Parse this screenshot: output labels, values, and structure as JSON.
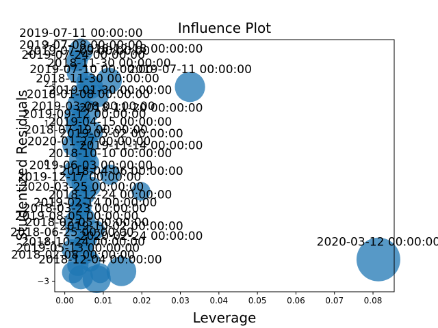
{
  "chart_data": {
    "type": "scatter",
    "title": "Influence Plot",
    "xlabel": "Leverage",
    "ylabel": "Studentized Residuals",
    "xlim": [
      -0.0026,
      0.0855
    ],
    "ylim": [
      -3.27,
      3.13
    ],
    "xticks": [
      0.0,
      0.01,
      0.02,
      0.03,
      0.04,
      0.05,
      0.06,
      0.07,
      0.08
    ],
    "xtick_labels": [
      "0.00",
      "0.01",
      "0.02",
      "0.03",
      "0.04",
      "0.05",
      "0.06",
      "0.07",
      "0.08"
    ],
    "yticks": [
      -3,
      -2,
      -1,
      0,
      1,
      2,
      3
    ],
    "ytick_labels": [
      "−3",
      "−2",
      "−1",
      "0",
      "1",
      "2",
      "3"
    ],
    "grid": false,
    "marker_color": "#1f77b4",
    "points": [
      {
        "x": 0.0814,
        "y": -2.45,
        "size": 1.0
      },
      {
        "x": 0.0325,
        "y": 1.93,
        "size": 0.42
      },
      {
        "x": 0.0147,
        "y": -2.75,
        "size": 0.4
      },
      {
        "x": 0.0083,
        "y": -2.95,
        "size": 0.35
      },
      {
        "x": 0.0115,
        "y": 2.09,
        "size": 0.28
      },
      {
        "x": 0.0042,
        "y": 2.85,
        "size": 0.24
      },
      {
        "x": 0.0069,
        "y": 1.93,
        "size": 0.22
      },
      {
        "x": 0.0042,
        "y": -2.9,
        "size": 0.24
      },
      {
        "x": 0.0085,
        "y": 1.7,
        "size": 0.2
      },
      {
        "x": 0.0022,
        "y": 0.45,
        "size": 0.18
      },
      {
        "x": 0.0031,
        "y": -1.8,
        "size": 0.2
      },
      {
        "x": 0.0021,
        "y": -2.78,
        "size": 0.18
      },
      {
        "x": 0.0061,
        "y": 1.3,
        "size": 0.2
      },
      {
        "x": 0.0048,
        "y": -2.3,
        "size": 0.2
      },
      {
        "x": 0.0055,
        "y": 0.2,
        "size": 0.17
      },
      {
        "x": 0.0038,
        "y": -1.2,
        "size": 0.18
      },
      {
        "x": 0.0118,
        "y": -0.3,
        "size": 0.15
      },
      {
        "x": 0.0198,
        "y": -0.72,
        "size": 0.12
      },
      {
        "x": 0.0029,
        "y": 0.9,
        "size": 0.16
      },
      {
        "x": 0.0035,
        "y": 1.5,
        "size": 0.18
      },
      {
        "x": 0.0045,
        "y": -0.5,
        "size": 0.17
      },
      {
        "x": 0.0051,
        "y": 0.6,
        "size": 0.16
      },
      {
        "x": 0.0026,
        "y": -1.5,
        "size": 0.18
      },
      {
        "x": 0.0033,
        "y": 2.3,
        "size": 0.18
      },
      {
        "x": 0.0058,
        "y": -1.9,
        "size": 0.16
      },
      {
        "x": 0.0063,
        "y": 0.0,
        "size": 0.15
      },
      {
        "x": 0.0019,
        "y": -2.2,
        "size": 0.16
      },
      {
        "x": 0.004,
        "y": 1.1,
        "size": 0.16
      },
      {
        "x": 0.0036,
        "y": -0.9,
        "size": 0.17
      },
      {
        "x": 0.0047,
        "y": 0.35,
        "size": 0.17
      },
      {
        "x": 0.0052,
        "y": -1.4,
        "size": 0.16
      },
      {
        "x": 0.0068,
        "y": -0.6,
        "size": 0.14
      },
      {
        "x": 0.0074,
        "y": 0.8,
        "size": 0.14
      },
      {
        "x": 0.0034,
        "y": -2.6,
        "size": 0.17
      },
      {
        "x": 0.0057,
        "y": 2.05,
        "size": 0.16
      },
      {
        "x": 0.0024,
        "y": -0.2,
        "size": 0.17
      },
      {
        "x": 0.0039,
        "y": 0.1,
        "size": 0.17
      },
      {
        "x": 0.0066,
        "y": -2.5,
        "size": 0.15
      },
      {
        "x": 0.0044,
        "y": 1.75,
        "size": 0.16
      },
      {
        "x": 0.0031,
        "y": -0.4,
        "size": 0.17
      },
      {
        "x": 0.0079,
        "y": -1.7,
        "size": 0.13
      },
      {
        "x": 0.0049,
        "y": -2.05,
        "size": 0.16
      },
      {
        "x": 0.0027,
        "y": 1.2,
        "size": 0.17
      },
      {
        "x": 0.0055,
        "y": -0.1,
        "size": 0.15
      },
      {
        "x": 0.0037,
        "y": 0.7,
        "size": 0.17
      },
      {
        "x": 0.0043,
        "y": -1.1,
        "size": 0.16
      },
      {
        "x": 0.0062,
        "y": 0.5,
        "size": 0.14
      },
      {
        "x": 0.0092,
        "y": -2.8,
        "size": 0.14
      },
      {
        "x": 0.0032,
        "y": 2.6,
        "size": 0.17
      },
      {
        "x": 0.0053,
        "y": -0.8,
        "size": 0.15
      }
    ],
    "annotations": [
      {
        "x": 0.0814,
        "y": -2.45,
        "label": "2020-03-12 00:00:00"
      },
      {
        "x": 0.0325,
        "y": 1.93,
        "label": "2019-07-11 00:00:00"
      },
      {
        "x": 0.0115,
        "y": 2.09,
        "label": "2018-11-30 00:00:00"
      },
      {
        "x": 0.0042,
        "y": 2.85,
        "label": "2019-07-11 00:00:00"
      },
      {
        "x": 0.0069,
        "y": 1.93,
        "label": "2019-07-10 00:00:00"
      },
      {
        "x": 0.0042,
        "y": 2.55,
        "label": "2019-07-08 00:00:00"
      },
      {
        "x": 0.0061,
        "y": 2.4,
        "label": "2019-07-09 00:00:00"
      },
      {
        "x": 0.0048,
        "y": 2.3,
        "label": "2019-07-24 00:00:00"
      },
      {
        "x": 0.0198,
        "y": 2.45,
        "label": "2018-12-18 00:00:00"
      },
      {
        "x": 0.0085,
        "y": 1.7,
        "label": "2018-11-30 00:00:00"
      },
      {
        "x": 0.0118,
        "y": 1.4,
        "label": "2019-01-30 00:00:00"
      },
      {
        "x": 0.0061,
        "y": 1.3,
        "label": "2018-01-08 00:00:00"
      },
      {
        "x": 0.0074,
        "y": 1.0,
        "label": "2019-03-08 00:00:00"
      },
      {
        "x": 0.0051,
        "y": 0.8,
        "label": "2019-09-12 00:00:00"
      },
      {
        "x": 0.0198,
        "y": 0.95,
        "label": "2018-11-20 00:00:00"
      },
      {
        "x": 0.0118,
        "y": 0.6,
        "label": "2019-04-15 00:00:00"
      },
      {
        "x": 0.0055,
        "y": 0.4,
        "label": "2018-07-19 00:00:00"
      },
      {
        "x": 0.0147,
        "y": 0.3,
        "label": "2019-05-02 00:00:00"
      },
      {
        "x": 0.0063,
        "y": 0.1,
        "label": "2020-01-27 00:00:00"
      },
      {
        "x": 0.0198,
        "y": 0.0,
        "label": "2019-11-14 00:00:00"
      },
      {
        "x": 0.0118,
        "y": -0.2,
        "label": "2018-10-10 00:00:00"
      },
      {
        "x": 0.0068,
        "y": -0.5,
        "label": "2019-06-03 00:00:00"
      },
      {
        "x": 0.0147,
        "y": -0.65,
        "label": "2018-04-06 00:00:00"
      },
      {
        "x": 0.0038,
        "y": -0.8,
        "label": "2019-12-17 00:00:00"
      },
      {
        "x": 0.0045,
        "y": -1.05,
        "label": "2020-03-25 00:00:00"
      },
      {
        "x": 0.0118,
        "y": -1.25,
        "label": "2018-12-24 00:00:00"
      },
      {
        "x": 0.0079,
        "y": -1.45,
        "label": "2019-02-14 00:00:00"
      },
      {
        "x": 0.0052,
        "y": -1.6,
        "label": "2018-03-23 00:00:00"
      },
      {
        "x": 0.0031,
        "y": -1.8,
        "label": "2019-08-05 00:00:00"
      },
      {
        "x": 0.0058,
        "y": -1.95,
        "label": "2018-02-05 00:00:00"
      },
      {
        "x": 0.0147,
        "y": -2.05,
        "label": "2019-10-02 00:00:00"
      },
      {
        "x": 0.0019,
        "y": -2.2,
        "label": "2018-06-25 00:00:00"
      },
      {
        "x": 0.0198,
        "y": -2.3,
        "label": "2020-02-24 00:00:00"
      },
      {
        "x": 0.0048,
        "y": -2.45,
        "label": "2018-10-24 00:00:00"
      },
      {
        "x": 0.0034,
        "y": -2.6,
        "label": "2019-05-13 00:00:00"
      },
      {
        "x": 0.0021,
        "y": -2.78,
        "label": "2018-02-08 00:00:00"
      },
      {
        "x": 0.0092,
        "y": -2.9,
        "label": "2018-12-04 00:00:00"
      }
    ]
  }
}
